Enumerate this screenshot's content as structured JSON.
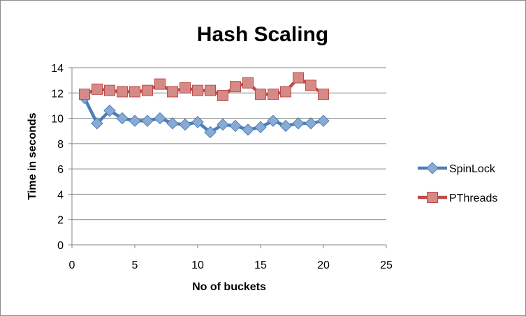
{
  "chart_data": {
    "type": "line",
    "title": "Hash Scaling",
    "xlabel": "No of buckets",
    "ylabel": "Time in seconds",
    "xlim": [
      0,
      25
    ],
    "ylim": [
      0,
      14
    ],
    "xticks": [
      "0",
      "5",
      "10",
      "15",
      "20",
      "25"
    ],
    "yticks": [
      "0",
      "2",
      "4",
      "6",
      "8",
      "10",
      "12",
      "14"
    ],
    "grid": "horizontal",
    "legend_position": "right",
    "x": [
      1,
      2,
      3,
      4,
      5,
      6,
      7,
      8,
      9,
      10,
      11,
      12,
      13,
      14,
      15,
      16,
      17,
      18,
      19,
      20
    ],
    "series": [
      {
        "name": "SpinLock",
        "color": "#4a7ebb",
        "marker": "diamond",
        "values": [
          11.6,
          9.6,
          10.6,
          10.0,
          9.8,
          9.8,
          10.0,
          9.6,
          9.5,
          9.7,
          8.9,
          9.5,
          9.4,
          9.1,
          9.3,
          9.8,
          9.4,
          9.6,
          9.6,
          9.8
        ]
      },
      {
        "name": "PThreads",
        "color": "#be4b48",
        "marker": "square",
        "values": [
          11.9,
          12.3,
          12.2,
          12.1,
          12.1,
          12.2,
          12.7,
          12.1,
          12.4,
          12.2,
          12.2,
          11.8,
          12.5,
          12.8,
          11.9,
          11.9,
          12.1,
          13.2,
          12.6,
          11.9
        ]
      }
    ]
  }
}
